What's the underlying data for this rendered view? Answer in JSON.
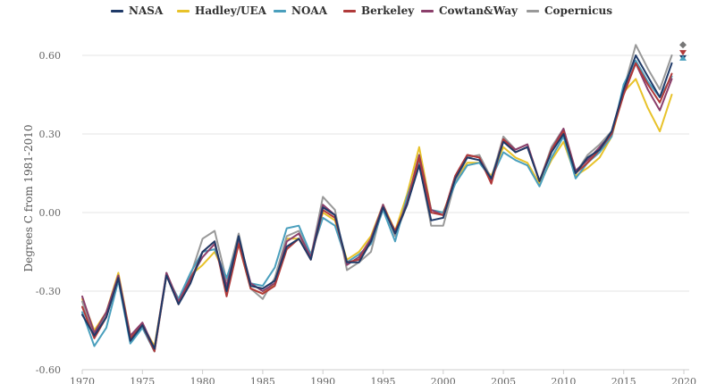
{
  "chart_data": {
    "type": "line",
    "title": "",
    "ylabel": "Degrees C from 1981-2010",
    "xlabel": "",
    "xlim": [
      1970,
      2020
    ],
    "ylim": [
      -0.6,
      0.6
    ],
    "x_ticks": [
      "1970",
      "1975",
      "1980",
      "1985",
      "1990",
      "1995",
      "2000",
      "2005",
      "2010",
      "2015",
      "2020"
    ],
    "y_ticks": [
      "0.60",
      "0.30",
      "0.00",
      "-0.30",
      "-0.60"
    ],
    "grid": "horizontal",
    "legend_position": "top",
    "x": [
      1970,
      1971,
      1972,
      1973,
      1974,
      1975,
      1976,
      1977,
      1978,
      1979,
      1980,
      1981,
      1982,
      1983,
      1984,
      1985,
      1986,
      1987,
      1988,
      1989,
      1990,
      1991,
      1992,
      1993,
      1994,
      1995,
      1996,
      1997,
      1998,
      1999,
      2000,
      2001,
      2002,
      2003,
      2004,
      2005,
      2006,
      2007,
      2008,
      2009,
      2010,
      2011,
      2012,
      2013,
      2014,
      2015,
      2016,
      2017,
      2018,
      2019
    ],
    "series": [
      {
        "name": "NASA",
        "color": "#1f3a68",
        "values": [
          -0.39,
          -0.47,
          -0.4,
          -0.25,
          -0.49,
          -0.43,
          -0.52,
          -0.24,
          -0.35,
          -0.27,
          -0.15,
          -0.11,
          -0.3,
          -0.09,
          -0.28,
          -0.29,
          -0.26,
          -0.13,
          -0.1,
          -0.18,
          0.02,
          -0.01,
          -0.19,
          -0.19,
          -0.11,
          0.02,
          -0.08,
          0.03,
          0.18,
          -0.03,
          -0.02,
          0.13,
          0.21,
          0.2,
          0.13,
          0.27,
          0.23,
          0.25,
          0.12,
          0.23,
          0.3,
          0.15,
          0.21,
          0.24,
          0.31,
          0.47,
          0.6,
          0.52,
          0.44,
          0.57
        ]
      },
      {
        "name": "Hadley/UEA",
        "color": "#e8c229",
        "values": [
          -0.33,
          -0.45,
          -0.38,
          -0.23,
          -0.47,
          -0.43,
          -0.51,
          -0.24,
          -0.33,
          -0.24,
          -0.2,
          -0.15,
          -0.25,
          -0.12,
          -0.29,
          -0.31,
          -0.27,
          -0.1,
          -0.1,
          -0.16,
          0.0,
          -0.03,
          -0.18,
          -0.15,
          -0.09,
          0.03,
          -0.07,
          0.07,
          0.25,
          0.01,
          0.0,
          0.12,
          0.19,
          0.19,
          0.14,
          0.25,
          0.21,
          0.19,
          0.11,
          0.2,
          0.27,
          0.14,
          0.17,
          0.21,
          0.29,
          0.46,
          0.51,
          0.4,
          0.31,
          0.45
        ]
      },
      {
        "name": "NOAA",
        "color": "#4a9fbd",
        "values": [
          -0.38,
          -0.51,
          -0.44,
          -0.26,
          -0.5,
          -0.44,
          -0.53,
          -0.24,
          -0.33,
          -0.23,
          -0.15,
          -0.14,
          -0.25,
          -0.11,
          -0.27,
          -0.28,
          -0.21,
          -0.06,
          -0.05,
          -0.16,
          -0.02,
          -0.05,
          -0.19,
          -0.16,
          -0.12,
          0.01,
          -0.11,
          0.06,
          0.19,
          0.01,
          0.0,
          0.11,
          0.18,
          0.19,
          0.13,
          0.23,
          0.2,
          0.18,
          0.1,
          0.21,
          0.29,
          0.13,
          0.19,
          0.23,
          0.29,
          0.49,
          0.58,
          0.5,
          0.44,
          0.52
        ]
      },
      {
        "name": "Berkeley",
        "color": "#b03a3a",
        "values": [
          -0.36,
          -0.48,
          -0.4,
          -0.25,
          -0.48,
          -0.43,
          -0.53,
          -0.24,
          -0.35,
          -0.26,
          -0.15,
          -0.11,
          -0.32,
          -0.12,
          -0.29,
          -0.31,
          -0.28,
          -0.14,
          -0.1,
          -0.18,
          0.01,
          -0.02,
          -0.19,
          -0.18,
          -0.11,
          0.02,
          -0.07,
          0.03,
          0.21,
          0.0,
          -0.01,
          0.14,
          0.22,
          0.21,
          0.11,
          0.28,
          0.23,
          0.25,
          0.12,
          0.24,
          0.31,
          0.15,
          0.19,
          0.24,
          0.3,
          0.45,
          0.57,
          0.49,
          0.42,
          0.53
        ]
      },
      {
        "name": "Cowtan&Way",
        "color": "#8b3f6b",
        "values": [
          -0.32,
          -0.46,
          -0.38,
          -0.24,
          -0.47,
          -0.42,
          -0.52,
          -0.23,
          -0.34,
          -0.25,
          -0.17,
          -0.12,
          -0.28,
          -0.1,
          -0.27,
          -0.3,
          -0.27,
          -0.11,
          -0.08,
          -0.17,
          0.03,
          -0.01,
          -0.2,
          -0.17,
          -0.1,
          0.03,
          -0.08,
          0.04,
          0.22,
          0.01,
          -0.01,
          0.14,
          0.22,
          0.21,
          0.12,
          0.28,
          0.24,
          0.26,
          0.12,
          0.24,
          0.32,
          0.16,
          0.2,
          0.25,
          0.3,
          0.46,
          0.57,
          0.47,
          0.39,
          0.51
        ]
      },
      {
        "name": "Copernicus",
        "color": "#999999",
        "values": [
          -0.34,
          -0.47,
          -0.39,
          -0.24,
          -0.48,
          -0.43,
          -0.53,
          -0.23,
          -0.34,
          -0.24,
          -0.1,
          -0.07,
          -0.26,
          -0.08,
          -0.29,
          -0.33,
          -0.25,
          -0.09,
          -0.07,
          -0.17,
          0.06,
          0.01,
          -0.22,
          -0.19,
          -0.15,
          0.03,
          -0.09,
          0.03,
          0.19,
          -0.05,
          -0.05,
          0.12,
          0.21,
          0.22,
          0.13,
          0.29,
          0.24,
          0.26,
          0.12,
          0.25,
          0.32,
          0.15,
          0.22,
          0.26,
          0.31,
          0.47,
          0.64,
          0.55,
          0.47,
          0.6
        ]
      }
    ],
    "markers_2020": [
      {
        "series": "Copernicus",
        "value": 0.64,
        "shape": "diamond",
        "color": "#777777"
      },
      {
        "series": "NASA",
        "value": 0.59,
        "shape": "triangle-down",
        "color": "#1f3a68"
      },
      {
        "series": "NOAA",
        "value": 0.59,
        "shape": "triangle-up",
        "color": "#4a9fbd"
      },
      {
        "series": "Berkeley",
        "value": 0.61,
        "shape": "triangle-down",
        "color": "#b03a3a"
      }
    ]
  }
}
